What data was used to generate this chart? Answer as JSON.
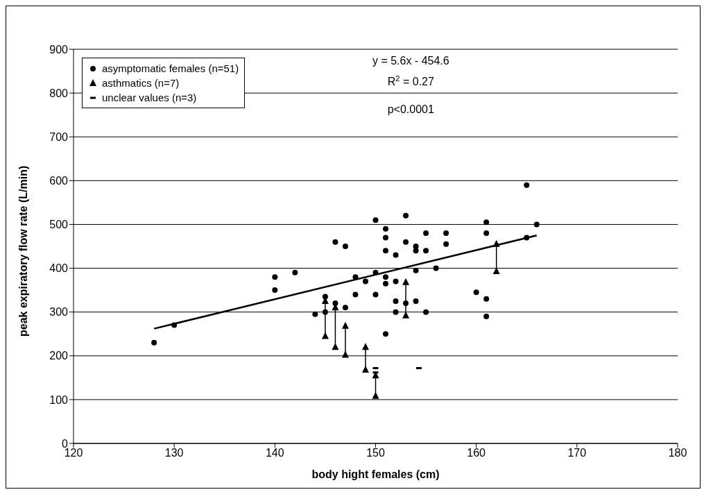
{
  "chart_data": {
    "type": "scatter",
    "xlabel": "body hight females (cm)",
    "ylabel": "peak expiratory flow rate (L/min)",
    "xlim": [
      120,
      180
    ],
    "xticks": [
      120,
      130,
      140,
      150,
      160,
      170,
      180
    ],
    "ylim": [
      0,
      900
    ],
    "yticks": [
      0,
      100,
      200,
      300,
      400,
      500,
      600,
      700,
      800,
      900
    ],
    "grid": "y",
    "legend": "top left",
    "annotations": [
      "y = 5.6x - 454.6",
      "R$^{2}$ = 0.27",
      "p<0.0001"
    ],
    "series": [
      {
        "name": "asymptomatic females (n=51)",
        "color": "#000000",
        "marker": "circle",
        "x": [
          128,
          130,
          140,
          140,
          142,
          144,
          145,
          145,
          146,
          146,
          147,
          147,
          148,
          148,
          149,
          150,
          150,
          150,
          151,
          151,
          151,
          151,
          151,
          151,
          152,
          152,
          152,
          152,
          153,
          153,
          153,
          154,
          154,
          154,
          154,
          155,
          155,
          155,
          156,
          157,
          157,
          160,
          161,
          161,
          161,
          161,
          165,
          165,
          166
        ],
        "values": [
          230,
          270,
          380,
          350,
          390,
          295,
          335,
          300,
          460,
          320,
          450,
          310,
          380,
          340,
          370,
          510,
          390,
          340,
          490,
          470,
          440,
          380,
          365,
          250,
          430,
          370,
          325,
          300,
          520,
          460,
          320,
          450,
          440,
          395,
          325,
          480,
          440,
          300,
          400,
          480,
          455,
          345,
          505,
          480,
          330,
          290,
          590,
          470,
          500
        ]
      },
      {
        "name": "asthmatics (n=7)",
        "color": "#000000",
        "marker": "triangle",
        "x": [
          145,
          145,
          146,
          146,
          147,
          147,
          149,
          149,
          150,
          150,
          153,
          153,
          162,
          162
        ],
        "values": [
          325,
          245,
          310,
          220,
          268,
          202,
          220,
          168,
          155,
          108,
          368,
          292,
          455,
          393
        ]
      },
      {
        "name": "unclear values (n=3)",
        "color": "#000000",
        "x": [
          150,
          150,
          154.3
        ],
        "values": [
          172,
          162,
          172
        ]
      },
      {
        "type": "line",
        "color": "#000000",
        "x": [
          128,
          166
        ],
        "values": [
          262,
          475
        ]
      }
    ]
  }
}
